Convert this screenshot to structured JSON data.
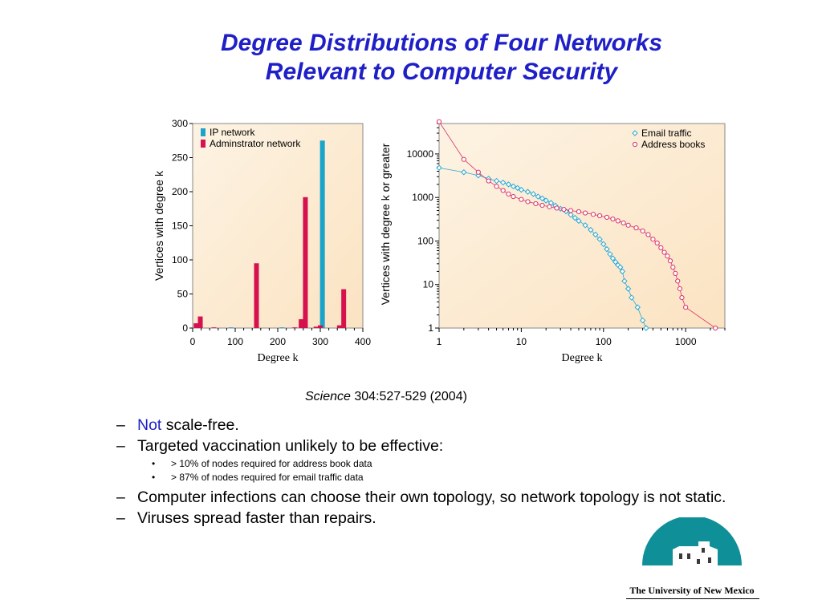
{
  "slide": {
    "title_line1": "Degree Distributions of Four Networks",
    "title_line2": "Relevant to Computer Security",
    "citation_journal": "Science",
    "citation_rest": " 304:527-529 (2004)",
    "colors": {
      "title": "#1f1fc7",
      "chart_bg": "#fbe3c2",
      "ip": "#1ba3c9",
      "admin": "#d6114e",
      "email": "#2aa8d3",
      "address": "#d9336a"
    }
  },
  "bullets": [
    {
      "level": 1,
      "highlight": "Not",
      "text": " scale-free."
    },
    {
      "level": 1,
      "highlight": "",
      "text": "Targeted vaccination unlikely to be effective:",
      "sub": [
        "> 10% of nodes required for address book data",
        "> 87% of nodes required for email traffic data"
      ]
    },
    {
      "level": 1,
      "highlight": "",
      "text": "Computer infections can choose their own topology, so network topology is not static."
    },
    {
      "level": 1,
      "highlight": "",
      "text": "Viruses spread faster than repairs."
    }
  ],
  "logo": {
    "text": "The University of New Mexico",
    "icon": "unm-building-logo-icon"
  },
  "chart_data": [
    {
      "type": "bar",
      "title": "",
      "xlabel": "Degree   k",
      "ylabel": "Vertices with degree k",
      "xlim": [
        0,
        400
      ],
      "ylim": [
        0,
        300
      ],
      "xticks": [
        "0",
        "100",
        "200",
        "300",
        "400"
      ],
      "yticks": [
        "0",
        "50",
        "100",
        "150",
        "200",
        "250",
        "300"
      ],
      "legend": "top-left",
      "series": [
        {
          "name": "IP network",
          "color": "#1ba3c9",
          "points": [
            [
              90,
              1
            ],
            [
              210,
              1
            ],
            [
              305,
              275
            ]
          ]
        },
        {
          "name": "Adminstrator network",
          "color": "#d6114e",
          "points": [
            [
              8,
              7
            ],
            [
              18,
              17
            ],
            [
              50,
              1
            ],
            [
              150,
              95
            ],
            [
              240,
              1
            ],
            [
              255,
              13
            ],
            [
              265,
              192
            ],
            [
              290,
              2
            ],
            [
              300,
              4
            ],
            [
              345,
              4
            ],
            [
              355,
              57
            ]
          ]
        }
      ]
    },
    {
      "type": "scatter",
      "title": "",
      "xlabel": "Degree   k",
      "ylabel": "Vertices with degree k or greater",
      "xscale": "log",
      "yscale": "log",
      "xlim": [
        1,
        3000
      ],
      "ylim": [
        1,
        50000
      ],
      "xticks": [
        "1",
        "10",
        "100",
        "1000"
      ],
      "yticks": [
        "1",
        "10",
        "100",
        "1000",
        "10000"
      ],
      "legend": "top-right",
      "series": [
        {
          "name": "Email traffic",
          "marker": "diamond",
          "color": "#2aa8d3",
          "points": [
            [
              1,
              4800
            ],
            [
              2,
              3800
            ],
            [
              3,
              3200
            ],
            [
              4,
              2700
            ],
            [
              5,
              2400
            ],
            [
              6,
              2200
            ],
            [
              7,
              2000
            ],
            [
              8,
              1800
            ],
            [
              9,
              1650
            ],
            [
              10,
              1500
            ],
            [
              12,
              1350
            ],
            [
              14,
              1200
            ],
            [
              16,
              1050
            ],
            [
              18,
              950
            ],
            [
              20,
              850
            ],
            [
              23,
              750
            ],
            [
              26,
              650
            ],
            [
              30,
              550
            ],
            [
              35,
              480
            ],
            [
              40,
              400
            ],
            [
              45,
              340
            ],
            [
              50,
              290
            ],
            [
              60,
              230
            ],
            [
              70,
              180
            ],
            [
              80,
              140
            ],
            [
              90,
              110
            ],
            [
              100,
              85
            ],
            [
              110,
              65
            ],
            [
              120,
              50
            ],
            [
              130,
              40
            ],
            [
              140,
              33
            ],
            [
              150,
              28
            ],
            [
              160,
              25
            ],
            [
              170,
              20
            ],
            [
              180,
              12
            ],
            [
              200,
              8
            ],
            [
              220,
              5
            ],
            [
              260,
              3
            ],
            [
              300,
              1.5
            ],
            [
              330,
              1
            ]
          ]
        },
        {
          "name": "Address books",
          "marker": "circle",
          "color": "#d9336a",
          "points": [
            [
              1,
              55000
            ],
            [
              2,
              7500
            ],
            [
              3,
              3800
            ],
            [
              4,
              2400
            ],
            [
              5,
              1800
            ],
            [
              6,
              1450
            ],
            [
              7,
              1200
            ],
            [
              8,
              1050
            ],
            [
              10,
              900
            ],
            [
              12,
              800
            ],
            [
              15,
              720
            ],
            [
              18,
              660
            ],
            [
              22,
              610
            ],
            [
              27,
              570
            ],
            [
              33,
              530
            ],
            [
              40,
              500
            ],
            [
              50,
              470
            ],
            [
              60,
              440
            ],
            [
              75,
              410
            ],
            [
              90,
              380
            ],
            [
              110,
              350
            ],
            [
              130,
              320
            ],
            [
              150,
              290
            ],
            [
              175,
              260
            ],
            [
              200,
              230
            ],
            [
              250,
              200
            ],
            [
              300,
              170
            ],
            [
              350,
              140
            ],
            [
              400,
              110
            ],
            [
              450,
              90
            ],
            [
              500,
              70
            ],
            [
              550,
              55
            ],
            [
              600,
              45
            ],
            [
              650,
              35
            ],
            [
              700,
              25
            ],
            [
              750,
              18
            ],
            [
              800,
              12
            ],
            [
              850,
              8
            ],
            [
              900,
              5
            ],
            [
              1000,
              3
            ],
            [
              2300,
              1
            ]
          ]
        }
      ]
    }
  ]
}
